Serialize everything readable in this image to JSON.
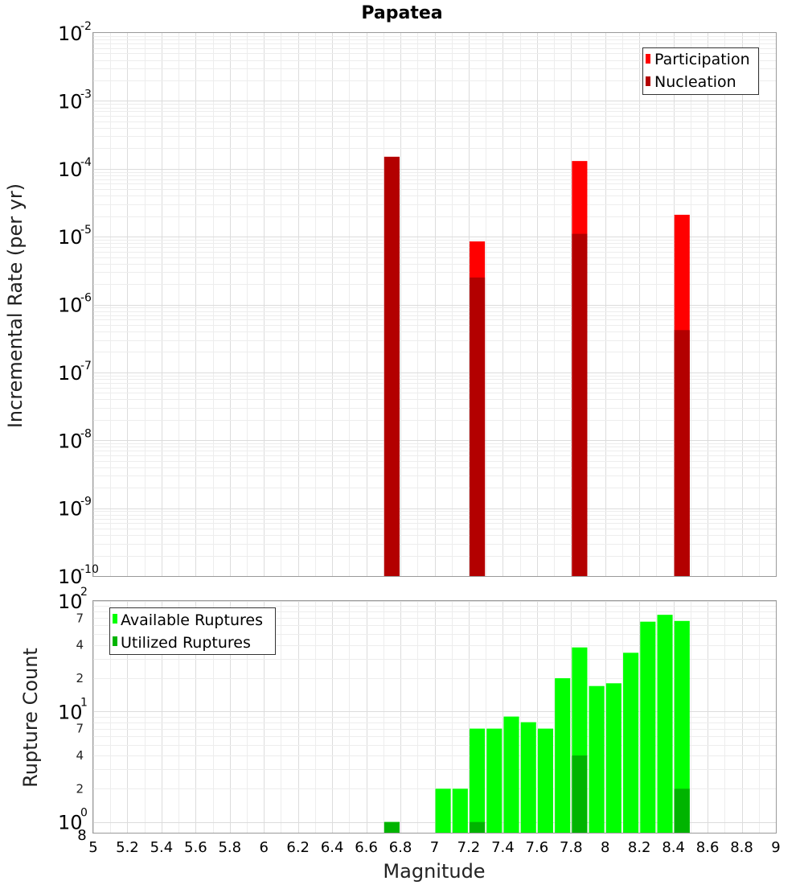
{
  "chart_data": [
    {
      "type": "bar",
      "title": "Papatea",
      "xlabel": "",
      "ylabel": "Incremental Rate (per yr)",
      "yscale": "log",
      "ylim": [
        1e-10,
        0.01
      ],
      "xlim": [
        5,
        9
      ],
      "y_tick_exponents": [
        -2,
        -3,
        -4,
        -5,
        -6,
        -7,
        -8,
        -9,
        -10
      ],
      "y_tick_base": "10",
      "grid": true,
      "legend_position": "top-right",
      "bar_width": 0.09,
      "series": [
        {
          "name": "Participation",
          "color": "#ff0000",
          "x": [
            6.75,
            7.25,
            7.85,
            8.45
          ],
          "values": [
            0.00015,
            8.5e-06,
            0.00013,
            2.1e-05
          ]
        },
        {
          "name": "Nucleation",
          "color": "#b30000",
          "x": [
            6.75,
            7.25,
            7.85,
            8.45
          ],
          "values": [
            0.00015,
            2.5e-06,
            1.1e-05,
            4.2e-07
          ]
        }
      ]
    },
    {
      "type": "bar",
      "title": "",
      "xlabel": "Magnitude",
      "ylabel": "Rupture Count",
      "yscale": "log",
      "ylim": [
        0.8,
        100
      ],
      "xlim": [
        5,
        9
      ],
      "x_ticks": [
        "5",
        "5.2",
        "5.4",
        "5.6",
        "5.8",
        "6",
        "6.2",
        "6.4",
        "6.6",
        "6.8",
        "7",
        "7.2",
        "7.4",
        "7.6",
        "7.8",
        "8",
        "8.2",
        "8.4",
        "8.6",
        "8.8",
        "9"
      ],
      "y_major_exponents": [
        2,
        1,
        0
      ],
      "y_tick_base": "10",
      "y_minor_ticks": [
        "7",
        "4",
        "2",
        "7",
        "4",
        "2"
      ],
      "y_bottom_label": "8",
      "grid": true,
      "legend_position": "top-left",
      "bar_width": 0.09,
      "series": [
        {
          "name": "Available Ruptures",
          "color": "#00ff00",
          "x": [
            6.75,
            7.05,
            7.15,
            7.25,
            7.35,
            7.45,
            7.55,
            7.65,
            7.75,
            7.85,
            7.95,
            8.05,
            8.15,
            8.25,
            8.35,
            8.45
          ],
          "values": [
            1,
            2,
            2,
            7,
            7,
            9,
            8,
            7,
            20,
            38,
            17,
            18,
            34,
            65,
            75,
            66
          ]
        },
        {
          "name": "Utilized Ruptures",
          "color": "#00b400",
          "x": [
            6.75,
            7.25,
            7.85,
            8.45
          ],
          "values": [
            1,
            1,
            4,
            2
          ]
        }
      ]
    }
  ]
}
